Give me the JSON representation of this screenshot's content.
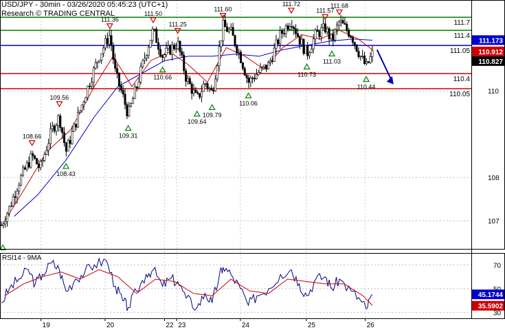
{
  "header": {
    "title": "USD/JPY - 30min - 03/26/2020 05:45:23 (UTC+1)",
    "subtitle": "Research © TRADING CENTRAL"
  },
  "chart_data": [
    {
      "type": "candlestick",
      "title": "USD/JPY - 30min - 03/26/2020 05:45:23 (UTC+1)",
      "ylim": [
        106.35,
        112.1
      ],
      "y_ticks": [
        107,
        108,
        110
      ],
      "x_labels": [
        {
          "label": "19",
          "pos": 0.087
        },
        {
          "label": "20",
          "pos": 0.223
        },
        {
          "label": "22",
          "pos": 0.349
        },
        {
          "label": "23",
          "pos": 0.375
        },
        {
          "label": "24",
          "pos": 0.51
        },
        {
          "label": "25",
          "pos": 0.65
        },
        {
          "label": "26",
          "pos": 0.775
        }
      ],
      "levels": [
        {
          "value": 111.7,
          "label": "111.7",
          "color": "#008000"
        },
        {
          "value": 111.4,
          "label": "111.4",
          "color": "#008000"
        },
        {
          "value": 111.05,
          "label": "111.05",
          "color": "#0000cc"
        },
        {
          "value": 110.4,
          "label": "110.4",
          "color": "#cc0000"
        },
        {
          "value": 110.05,
          "label": "110.05",
          "color": "#cc0000"
        }
      ],
      "price_boxes": [
        {
          "value": 111.173,
          "label": "111.173",
          "color": "#0000cc"
        },
        {
          "value": 110.912,
          "label": "110.912",
          "color": "#cc0000"
        },
        {
          "value": 110.827,
          "label": "110.827",
          "color": "#000000"
        }
      ],
      "pivots": [
        {
          "pos": 0.006,
          "value": 106.55,
          "type": "low",
          "label": ""
        },
        {
          "pos": 0.068,
          "value": 108.66,
          "type": "high",
          "label": "108.66"
        },
        {
          "pos": 0.126,
          "value": 109.56,
          "type": "high",
          "label": "109.56"
        },
        {
          "pos": 0.14,
          "value": 108.43,
          "type": "low",
          "label": "108.43"
        },
        {
          "pos": 0.233,
          "value": 111.36,
          "type": "high",
          "label": "111.36"
        },
        {
          "pos": 0.272,
          "value": 109.31,
          "type": "low",
          "label": "109.31"
        },
        {
          "pos": 0.325,
          "value": 111.5,
          "type": "high",
          "label": "111.50"
        },
        {
          "pos": 0.345,
          "value": 110.66,
          "type": "low",
          "label": "110.66"
        },
        {
          "pos": 0.377,
          "value": 111.25,
          "type": "high",
          "label": "111.25"
        },
        {
          "pos": 0.418,
          "value": 109.64,
          "type": "low",
          "label": "109.64"
        },
        {
          "pos": 0.45,
          "value": 109.79,
          "type": "low",
          "label": "109.79"
        },
        {
          "pos": 0.473,
          "value": 111.6,
          "type": "high",
          "label": "111.60"
        },
        {
          "pos": 0.527,
          "value": 110.06,
          "type": "low",
          "label": "110.06"
        },
        {
          "pos": 0.618,
          "value": 111.72,
          "type": "high",
          "label": "111.72"
        },
        {
          "pos": 0.651,
          "value": 110.73,
          "type": "low",
          "label": "110.73"
        },
        {
          "pos": 0.69,
          "value": 111.57,
          "type": "high",
          "label": "111.57"
        },
        {
          "pos": 0.704,
          "value": 111.03,
          "type": "low",
          "label": "111.03"
        },
        {
          "pos": 0.72,
          "value": 111.68,
          "type": "high",
          "label": "111.68"
        },
        {
          "pos": 0.777,
          "value": 110.44,
          "type": "low",
          "label": "110.44"
        }
      ],
      "forecast_arrow": {
        "from": {
          "pos": 0.8,
          "value": 110.95
        },
        "to": {
          "pos": 0.835,
          "value": 110.15
        },
        "color": "#0000aa"
      },
      "price_path": [
        [
          0.003,
          106.9
        ],
        [
          0.02,
          107.3
        ],
        [
          0.04,
          107.9
        ],
        [
          0.068,
          108.5
        ],
        [
          0.085,
          108.2
        ],
        [
          0.11,
          109.1
        ],
        [
          0.126,
          109.4
        ],
        [
          0.14,
          108.6
        ],
        [
          0.165,
          109.4
        ],
        [
          0.19,
          110.2
        ],
        [
          0.21,
          110.8
        ],
        [
          0.233,
          111.3
        ],
        [
          0.245,
          110.4
        ],
        [
          0.26,
          109.9
        ],
        [
          0.272,
          109.45
        ],
        [
          0.29,
          110.1
        ],
        [
          0.31,
          110.9
        ],
        [
          0.325,
          111.4
        ],
        [
          0.345,
          110.8
        ],
        [
          0.36,
          110.95
        ],
        [
          0.377,
          111.1
        ],
        [
          0.395,
          110.3
        ],
        [
          0.418,
          109.8
        ],
        [
          0.435,
          110.2
        ],
        [
          0.45,
          109.95
        ],
        [
          0.473,
          111.5
        ],
        [
          0.49,
          111.35
        ],
        [
          0.51,
          110.8
        ],
        [
          0.527,
          110.2
        ],
        [
          0.545,
          110.4
        ],
        [
          0.57,
          110.6
        ],
        [
          0.595,
          111.3
        ],
        [
          0.618,
          111.65
        ],
        [
          0.635,
          111.2
        ],
        [
          0.651,
          110.85
        ],
        [
          0.67,
          111.3
        ],
        [
          0.69,
          111.45
        ],
        [
          0.704,
          111.15
        ],
        [
          0.72,
          111.6
        ],
        [
          0.745,
          111.3
        ],
        [
          0.765,
          110.8
        ],
        [
          0.777,
          110.55
        ],
        [
          0.79,
          110.85
        ]
      ],
      "ma_fast": [
        [
          0.01,
          107.0
        ],
        [
          0.05,
          107.7
        ],
        [
          0.1,
          108.6
        ],
        [
          0.15,
          109.1
        ],
        [
          0.2,
          110.1
        ],
        [
          0.24,
          110.8
        ],
        [
          0.28,
          110.1
        ],
        [
          0.32,
          110.7
        ],
        [
          0.36,
          110.9
        ],
        [
          0.4,
          110.6
        ],
        [
          0.44,
          110.2
        ],
        [
          0.48,
          111.0
        ],
        [
          0.52,
          110.8
        ],
        [
          0.56,
          110.5
        ],
        [
          0.6,
          111.0
        ],
        [
          0.64,
          111.3
        ],
        [
          0.68,
          111.2
        ],
        [
          0.72,
          111.4
        ],
        [
          0.76,
          111.2
        ],
        [
          0.79,
          110.95
        ]
      ],
      "ma_slow": [
        [
          0.03,
          107.1
        ],
        [
          0.08,
          107.6
        ],
        [
          0.14,
          108.4
        ],
        [
          0.2,
          109.4
        ],
        [
          0.25,
          110.1
        ],
        [
          0.3,
          110.4
        ],
        [
          0.35,
          110.7
        ],
        [
          0.4,
          110.8
        ],
        [
          0.45,
          110.8
        ],
        [
          0.5,
          110.85
        ],
        [
          0.55,
          110.8
        ],
        [
          0.6,
          110.95
        ],
        [
          0.65,
          111.05
        ],
        [
          0.7,
          111.15
        ],
        [
          0.75,
          111.2
        ],
        [
          0.79,
          111.17
        ]
      ]
    },
    {
      "type": "line",
      "title": "RSI14 - 9MA",
      "ylim": [
        25,
        80
      ],
      "y_ticks": [
        30,
        50,
        70
      ],
      "price_boxes": [
        {
          "value": 45.1744,
          "label": "45.1744",
          "color": "#0000cc"
        },
        {
          "value": 35.5902,
          "label": "35.5902",
          "color": "#cc0000"
        }
      ],
      "series": [
        {
          "name": "RSI14",
          "color": "#000080",
          "values": [
            [
              0.003,
              38
            ],
            [
              0.02,
              50
            ],
            [
              0.04,
              58
            ],
            [
              0.06,
              66
            ],
            [
              0.075,
              54
            ],
            [
              0.09,
              62
            ],
            [
              0.11,
              72
            ],
            [
              0.126,
              66
            ],
            [
              0.14,
              48
            ],
            [
              0.16,
              58
            ],
            [
              0.18,
              64
            ],
            [
              0.2,
              70
            ],
            [
              0.225,
              74
            ],
            [
              0.245,
              52
            ],
            [
              0.26,
              40
            ],
            [
              0.272,
              34
            ],
            [
              0.29,
              48
            ],
            [
              0.31,
              62
            ],
            [
              0.325,
              66
            ],
            [
              0.345,
              52
            ],
            [
              0.36,
              58
            ],
            [
              0.377,
              56
            ],
            [
              0.395,
              42
            ],
            [
              0.418,
              34
            ],
            [
              0.435,
              46
            ],
            [
              0.45,
              38
            ],
            [
              0.465,
              60
            ],
            [
              0.473,
              68
            ],
            [
              0.49,
              62
            ],
            [
              0.51,
              50
            ],
            [
              0.527,
              36
            ],
            [
              0.545,
              44
            ],
            [
              0.57,
              50
            ],
            [
              0.595,
              62
            ],
            [
              0.618,
              66
            ],
            [
              0.635,
              54
            ],
            [
              0.651,
              44
            ],
            [
              0.67,
              58
            ],
            [
              0.69,
              60
            ],
            [
              0.704,
              50
            ],
            [
              0.72,
              58
            ],
            [
              0.745,
              48
            ],
            [
              0.765,
              40
            ],
            [
              0.777,
              33
            ],
            [
              0.79,
              45
            ]
          ]
        },
        {
          "name": "9MA",
          "color": "#cc0000",
          "values": [
            [
              0.01,
              44
            ],
            [
              0.05,
              54
            ],
            [
              0.09,
              60
            ],
            [
              0.13,
              64
            ],
            [
              0.17,
              58
            ],
            [
              0.21,
              66
            ],
            [
              0.25,
              60
            ],
            [
              0.29,
              46
            ],
            [
              0.33,
              58
            ],
            [
              0.37,
              56
            ],
            [
              0.41,
              46
            ],
            [
              0.45,
              44
            ],
            [
              0.49,
              58
            ],
            [
              0.53,
              48
            ],
            [
              0.57,
              46
            ],
            [
              0.61,
              58
            ],
            [
              0.65,
              56
            ],
            [
              0.69,
              54
            ],
            [
              0.73,
              54
            ],
            [
              0.77,
              44
            ],
            [
              0.79,
              36
            ]
          ]
        }
      ]
    }
  ]
}
